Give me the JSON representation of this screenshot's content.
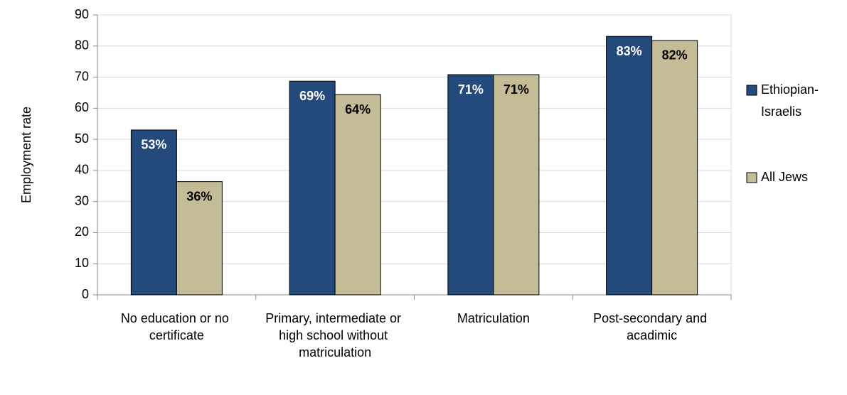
{
  "chart_data": {
    "type": "bar",
    "y_label": "Employment rate",
    "categories": [
      "No education or no certificate",
      "Primary, intermediate or high school without matriculation",
      "Matriculation",
      "Post-secondary and acadimic"
    ],
    "series": [
      {
        "name": "Ethiopian-Israelis",
        "color": "#244a7c",
        "label_color": "#ffffff",
        "values": [
          53.0,
          68.7,
          70.8,
          83.1
        ],
        "value_labels": [
          "53%",
          "69%",
          "71%",
          "83%"
        ]
      },
      {
        "name": "All Jews",
        "color": "#c4bc96",
        "label_color": "#000000",
        "values": [
          36.4,
          64.4,
          70.8,
          81.8
        ],
        "value_labels": [
          "36%",
          "64%",
          "71%",
          "82%"
        ]
      }
    ],
    "ylim": [
      0,
      90
    ],
    "yticks": [
      0,
      10,
      20,
      30,
      40,
      50,
      60,
      70,
      80,
      90
    ],
    "grid": true,
    "legend": "right"
  }
}
